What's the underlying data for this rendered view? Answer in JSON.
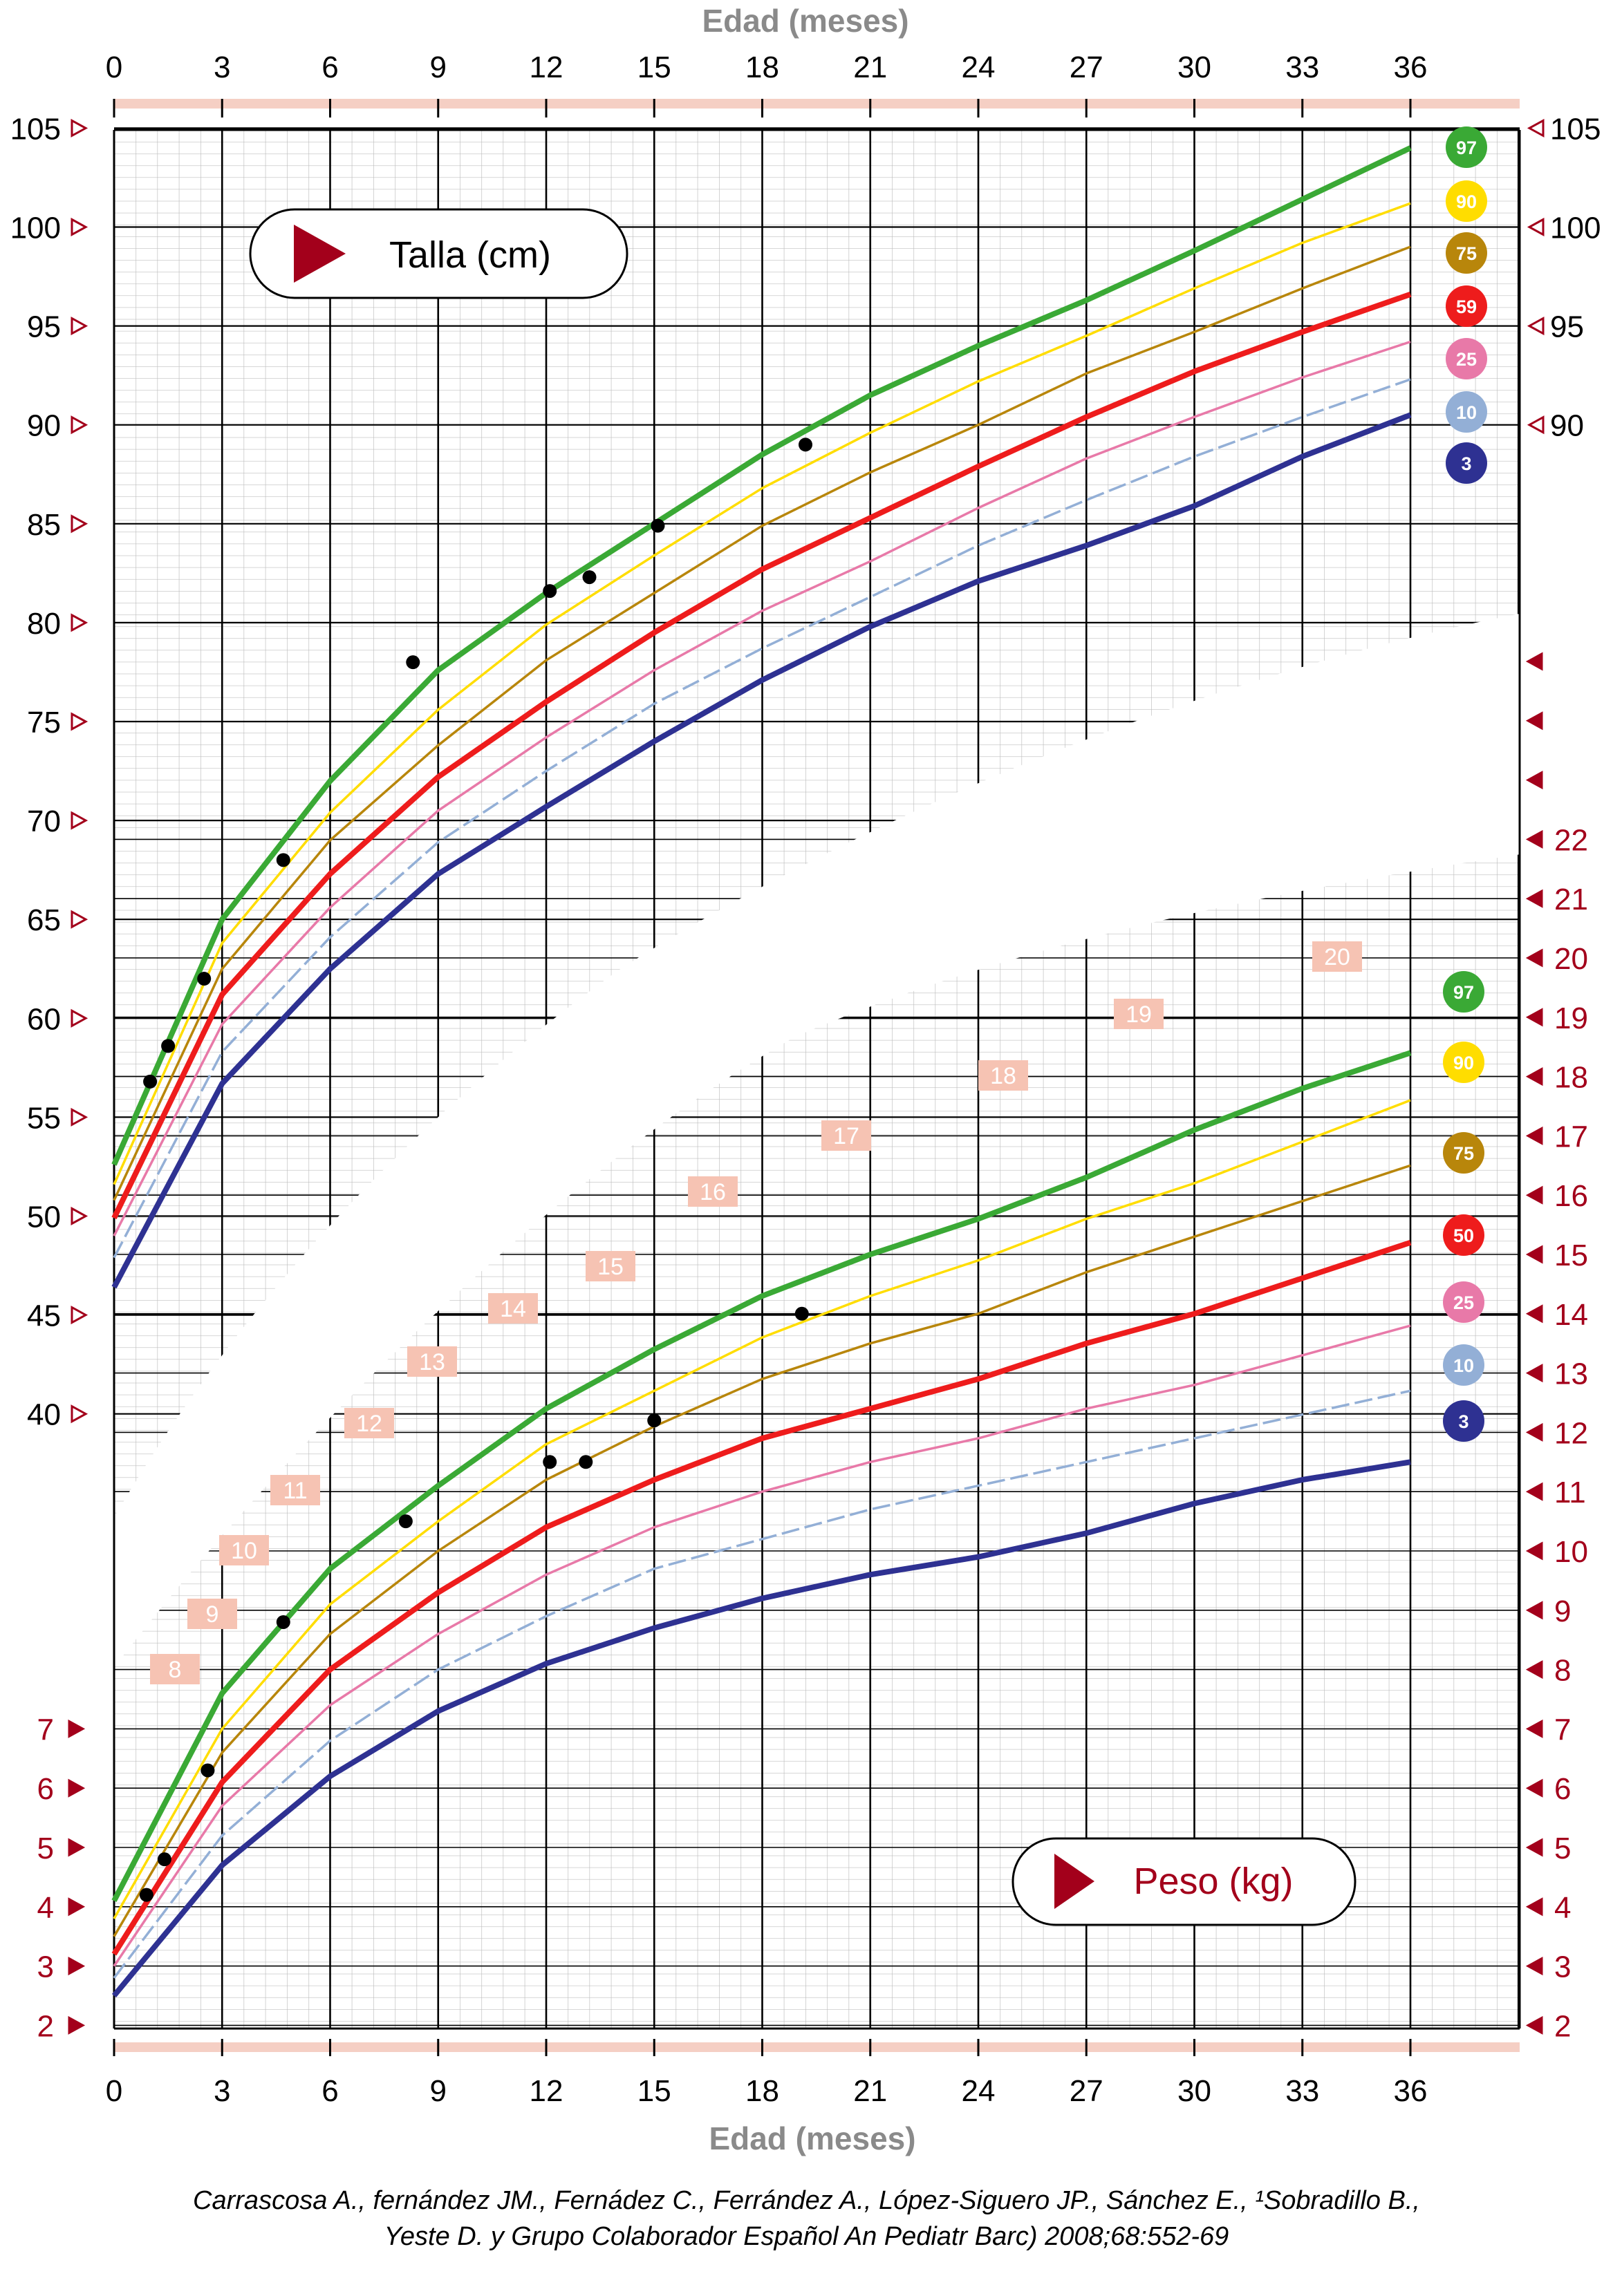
{
  "chart_data": {
    "type": "line",
    "x_axis": {
      "title": "Edad (meses)",
      "range": [
        0,
        36
      ],
      "ticks": [
        "0",
        "3",
        "6",
        "9",
        "12",
        "15",
        "18",
        "21",
        "24",
        "27",
        "30",
        "33",
        "36"
      ]
    },
    "height_chart": {
      "label": "Talla (cm)",
      "y_range": [
        37.5,
        105
      ],
      "ticks": [
        "40",
        "45",
        "50",
        "55",
        "60",
        "65",
        "70",
        "75",
        "80",
        "85",
        "90",
        "95",
        "100",
        "105"
      ],
      "right_ticks": [
        "90",
        "95",
        "100",
        "105"
      ],
      "x": [
        0,
        3,
        6,
        9,
        12,
        15,
        18,
        21,
        24,
        27,
        30,
        33,
        36
      ],
      "series": [
        {
          "percentile": "97",
          "color": "#3aa935",
          "values": [
            52.6,
            65.0,
            72.0,
            77.6,
            81.5,
            85.0,
            88.5,
            91.5,
            94.0,
            96.3,
            98.8,
            101.4,
            104.0
          ]
        },
        {
          "percentile": "90",
          "color": "#ffdd00",
          "values": [
            51.6,
            63.8,
            70.4,
            75.6,
            79.9,
            83.4,
            86.8,
            89.6,
            92.2,
            94.5,
            96.9,
            99.2,
            101.2
          ]
        },
        {
          "percentile": "75",
          "color": "#b8860b",
          "values": [
            50.8,
            62.5,
            69.0,
            73.8,
            78.1,
            81.5,
            84.9,
            87.6,
            90.0,
            92.6,
            94.7,
            96.9,
            99.0
          ]
        },
        {
          "percentile": "59",
          "color": "#ee1c1c",
          "values": [
            49.9,
            61.2,
            67.3,
            72.2,
            76.0,
            79.5,
            82.7,
            85.3,
            87.9,
            90.4,
            92.7,
            94.7,
            96.6
          ]
        },
        {
          "percentile": "25",
          "color": "#e879a8",
          "values": [
            49.0,
            59.7,
            65.6,
            70.5,
            74.2,
            77.6,
            80.6,
            83.1,
            85.8,
            88.3,
            90.4,
            92.4,
            94.2
          ]
        },
        {
          "percentile": "10",
          "color": "#93afd6",
          "values": [
            47.9,
            58.3,
            64.1,
            68.9,
            72.5,
            75.9,
            78.7,
            81.3,
            83.9,
            86.2,
            88.4,
            90.4,
            92.3
          ]
        },
        {
          "percentile": "3",
          "color": "#2e3192",
          "values": [
            46.4,
            56.7,
            62.5,
            67.3,
            70.7,
            74.0,
            77.1,
            79.8,
            82.1,
            83.9,
            85.9,
            88.4,
            90.5
          ]
        }
      ],
      "measurements": {
        "x": [
          1.0,
          1.5,
          2.5,
          4.7,
          8.3,
          12.1,
          13.2,
          15.1,
          19.2
        ],
        "values": [
          56.8,
          58.6,
          62.0,
          68.0,
          78.0,
          81.6,
          82.3,
          84.9,
          89.0
        ]
      }
    },
    "weight_chart": {
      "label": "Peso (kg)",
      "y_range": [
        2,
        22
      ],
      "ticks": [
        "2",
        "3",
        "4",
        "5",
        "6",
        "7"
      ],
      "right_ticks": [
        "2",
        "3",
        "4",
        "5",
        "6",
        "7",
        "8",
        "9",
        "10",
        "11",
        "12",
        "13",
        "14",
        "15",
        "16",
        "17",
        "18",
        "19",
        "20",
        "21",
        "22"
      ],
      "diagonal_labels": [
        "8",
        "9",
        "10",
        "11",
        "12",
        "13",
        "14",
        "15",
        "16",
        "17",
        "18",
        "19",
        "20"
      ],
      "x": [
        0,
        3,
        6,
        9,
        12,
        15,
        18,
        21,
        24,
        27,
        30,
        33,
        36
      ],
      "series": [
        {
          "percentile": "97",
          "color": "#3aa935",
          "values": [
            4.1,
            7.6,
            9.7,
            11.1,
            12.4,
            13.4,
            14.3,
            15.0,
            15.6,
            16.3,
            17.1,
            17.8,
            18.4
          ]
        },
        {
          "percentile": "90",
          "color": "#ffdd00",
          "values": [
            3.8,
            7.0,
            9.1,
            10.5,
            11.8,
            12.7,
            13.6,
            14.3,
            14.9,
            15.6,
            16.2,
            16.9,
            17.6
          ]
        },
        {
          "percentile": "75",
          "color": "#b8860b",
          "values": [
            3.5,
            6.6,
            8.6,
            10.0,
            11.2,
            12.1,
            12.9,
            13.5,
            14.0,
            14.7,
            15.3,
            15.9,
            16.5
          ]
        },
        {
          "percentile": "50",
          "color": "#ee1c1c",
          "values": [
            3.2,
            6.1,
            8.0,
            9.3,
            10.4,
            11.2,
            11.9,
            12.4,
            12.9,
            13.5,
            14.0,
            14.6,
            15.2
          ]
        },
        {
          "percentile": "25",
          "color": "#e879a8",
          "values": [
            3.0,
            5.7,
            7.4,
            8.6,
            9.6,
            10.4,
            11.0,
            11.5,
            11.9,
            12.4,
            12.8,
            13.3,
            13.8
          ]
        },
        {
          "percentile": "10",
          "color": "#93afd6",
          "values": [
            2.8,
            5.2,
            6.8,
            8.0,
            8.9,
            9.7,
            10.2,
            10.7,
            11.1,
            11.5,
            11.9,
            12.3,
            12.7
          ]
        },
        {
          "percentile": "3",
          "color": "#2e3192",
          "values": [
            2.5,
            4.7,
            6.2,
            7.3,
            8.1,
            8.7,
            9.2,
            9.6,
            9.9,
            10.3,
            10.8,
            11.2,
            11.5
          ]
        }
      ],
      "measurements": {
        "x": [
          0.9,
          1.4,
          2.6,
          4.7,
          8.1,
          12.1,
          13.1,
          15.0,
          19.1
        ],
        "values": [
          4.2,
          4.8,
          6.3,
          8.8,
          10.5,
          11.5,
          11.5,
          12.2,
          14.0
        ]
      }
    }
  },
  "citation": {
    "line1": "Carrascosa A., fernández JM., Fernádez C., Ferrández A., López-Siguero JP., Sánchez E., ¹Sobradillo B.,",
    "line2": "Yeste D. y Grupo Colaborador Español  An Pediatr Barc) 2008;68:552-69"
  }
}
